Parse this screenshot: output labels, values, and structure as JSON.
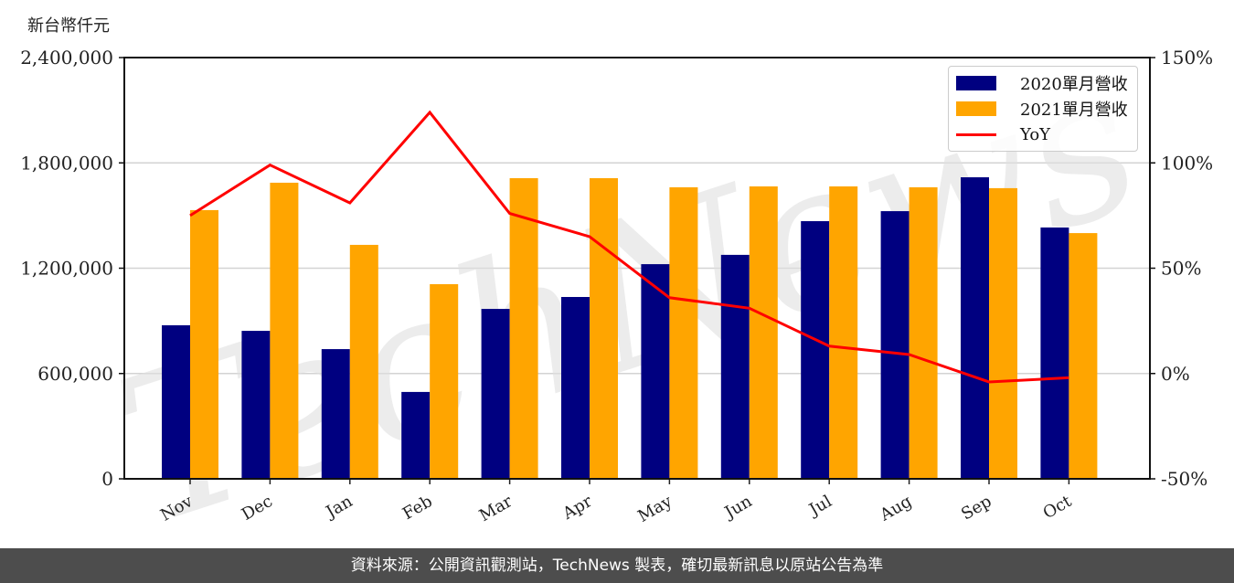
{
  "chart": {
    "unit_label": "新台幣仟元",
    "footer": "資料來源：公開資訊觀測站，TechNews 製表，確切最新訊息以原站公告為準",
    "watermark": "TechNews",
    "colors": {
      "series_2020": "#000080",
      "series_2021": "#FFA500",
      "yoy": "#FF0000",
      "grid": "#d3d3d3",
      "footer_bg": "#4d4d4d"
    },
    "legend": [
      {
        "label": "2020單月營收",
        "type": "bar",
        "color": "#000080"
      },
      {
        "label": "2021單月營收",
        "type": "bar",
        "color": "#FFA500"
      },
      {
        "label": "YoY",
        "type": "line",
        "color": "#FF0000"
      }
    ],
    "left_ticks": [
      "0",
      "600,000",
      "1,200,000",
      "1,800,000",
      "2,400,000"
    ],
    "right_ticks": [
      "-50%",
      "0%",
      "50%",
      "100%",
      "150%"
    ]
  },
  "chart_data": {
    "type": "bar",
    "title": "",
    "xlabel": "",
    "ylabel": "新台幣仟元",
    "y2label": "YoY",
    "categories": [
      "Nov",
      "Dec",
      "Jan",
      "Feb",
      "Mar",
      "Apr",
      "May",
      "Jun",
      "Jul",
      "Aug",
      "Sep",
      "Oct"
    ],
    "series": [
      {
        "name": "2020單月營收",
        "type": "bar",
        "axis": "left",
        "values": [
          875000,
          843000,
          739000,
          495000,
          968000,
          1036000,
          1223000,
          1276000,
          1468000,
          1525000,
          1718000,
          1432000
        ]
      },
      {
        "name": "2021單月營收",
        "type": "bar",
        "axis": "left",
        "values": [
          1531000,
          1687000,
          1333000,
          1109000,
          1713000,
          1713000,
          1661000,
          1666000,
          1666000,
          1661000,
          1656000,
          1400000
        ]
      },
      {
        "name": "YoY",
        "type": "line",
        "axis": "right",
        "unit": "%",
        "values": [
          75,
          99,
          81,
          124,
          76,
          65,
          36,
          31,
          13,
          9,
          -4,
          -2
        ]
      }
    ],
    "ylim": [
      0,
      2400000
    ],
    "y2lim": [
      -50,
      150
    ],
    "grid": true,
    "legend_position": "upper right"
  }
}
